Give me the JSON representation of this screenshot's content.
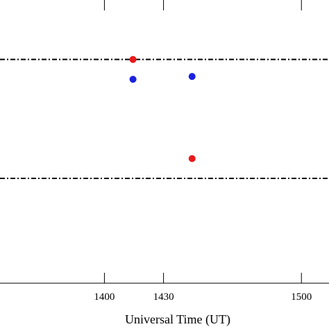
{
  "chart_data": {
    "type": "scatter",
    "xlabel": "Universal Time (UT)",
    "xlim": [
      1347,
      1514
    ],
    "ylim": [
      0,
      1
    ],
    "x_ticks": [
      {
        "value": 1400,
        "label": "1400"
      },
      {
        "value": 1430,
        "label": "1430"
      },
      {
        "value": 1500,
        "label": "1500"
      }
    ],
    "series": [
      {
        "color": "#e8191b",
        "points": [
          {
            "x": 1414.5,
            "y": 0.79
          },
          {
            "x": 1444.5,
            "y": 0.44
          }
        ]
      },
      {
        "color": "#1a22e0",
        "points": [
          {
            "x": 1414.5,
            "y": 0.72
          },
          {
            "x": 1444.5,
            "y": 0.73
          }
        ]
      }
    ],
    "reference_lines": [
      {
        "y": 0.79,
        "style": "dash-dot",
        "color": "#000000"
      },
      {
        "y": 0.37,
        "style": "dash-dot",
        "color": "#000000"
      }
    ],
    "grid": false
  }
}
